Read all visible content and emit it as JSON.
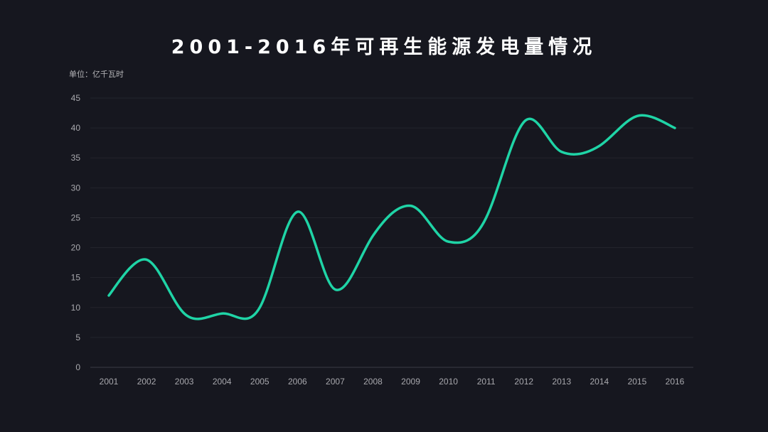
{
  "chart_data": {
    "type": "line",
    "title": "2001-2016年可再生能源发电量情况",
    "unit_label": "单位：亿千瓦时",
    "xlabel": "",
    "ylabel": "",
    "categories": [
      "2001",
      "2002",
      "2003",
      "2004",
      "2005",
      "2006",
      "2007",
      "2008",
      "2009",
      "2010",
      "2011",
      "2012",
      "2013",
      "2014",
      "2015",
      "2016"
    ],
    "series": [
      {
        "values": [
          12,
          18,
          9,
          9,
          10,
          26,
          13,
          22,
          27,
          21,
          25,
          41,
          36,
          37,
          42,
          40
        ]
      }
    ],
    "ylim": [
      0,
      45
    ],
    "yticks": [
      0,
      5,
      10,
      15,
      20,
      25,
      30,
      35,
      40,
      45
    ],
    "grid": true,
    "smooth": true,
    "line_color": "#1fd4a6",
    "background": "#16171f"
  }
}
